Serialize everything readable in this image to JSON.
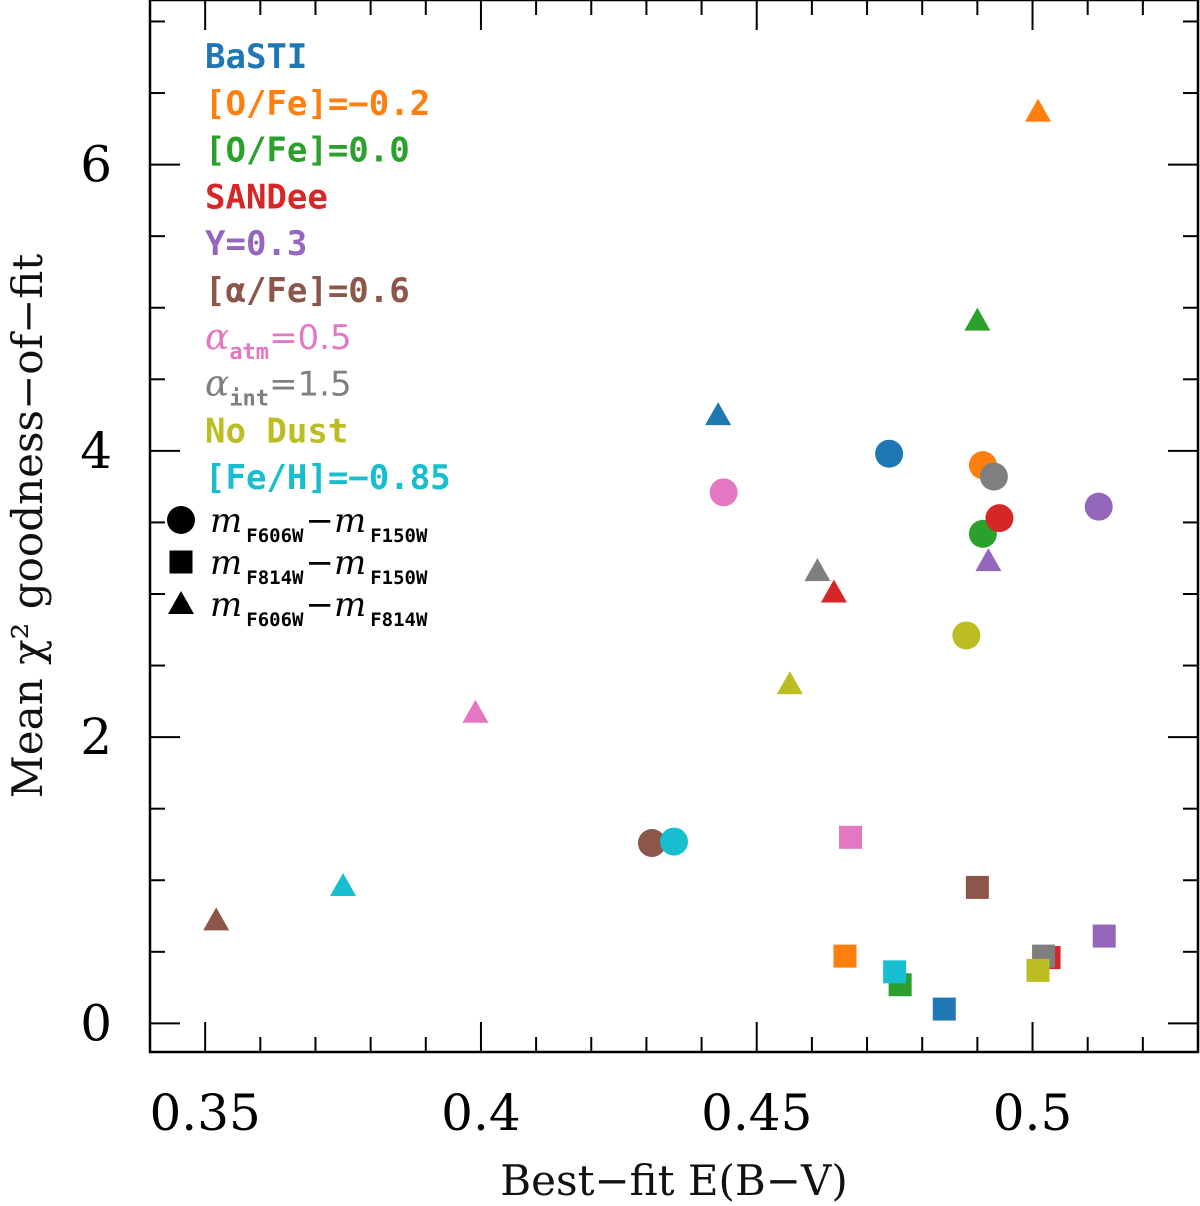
{
  "chart_data": {
    "type": "scatter",
    "xlabel": "Best−fit E(B−V)",
    "ylabel": "Mean χ² goodness−of−fit",
    "xlim": [
      0.34,
      0.53
    ],
    "ylim": [
      -0.2,
      7.15
    ],
    "x_ticks": [
      0.35,
      0.4,
      0.45,
      0.5
    ],
    "x_tick_labels": [
      "0.35",
      "0.4",
      "0.45",
      "0.5"
    ],
    "y_ticks": [
      0,
      2,
      4,
      6
    ],
    "y_tick_labels": [
      "0",
      "2",
      "4",
      "6"
    ],
    "x_minor_step": 0.01,
    "y_minor_step": 0.5,
    "legend_placement": "top-left",
    "models": [
      {
        "name": "BaSTI",
        "display": "BaSTI",
        "color": "#1f77b4"
      },
      {
        "name": "[O/Fe]=-0.2",
        "display": "[O/Fe]=−0.2",
        "color": "#ff7f0e"
      },
      {
        "name": "[O/Fe]=0.0",
        "display": "[O/Fe]=0.0",
        "color": "#2ca02c"
      },
      {
        "name": "SANDee",
        "display": "SANDee",
        "color": "#d62728"
      },
      {
        "name": "Y=0.3",
        "display": "Y=0.3",
        "color": "#9467bd"
      },
      {
        "name": "[alpha/Fe]=0.6",
        "display": "[α/Fe]=0.6",
        "color": "#8c564b"
      },
      {
        "name": "alpha_atm=0.5",
        "display": "α",
        "sub": "atm",
        "rest": "=0.5",
        "color": "#e377c2"
      },
      {
        "name": "alpha_int=1.5",
        "display": "α",
        "sub": "int",
        "rest": "=1.5",
        "color": "#7f7f7f"
      },
      {
        "name": "No Dust",
        "display": "No Dust",
        "color": "#bcbd22"
      },
      {
        "name": "[Fe/H]=-0.85",
        "display": "[Fe/H]=−0.85",
        "color": "#17becf"
      }
    ],
    "marker_legend": [
      {
        "marker": "circle",
        "c1": "m",
        "s1": "F606W",
        "sep": "−",
        "c2": "m",
        "s2": "F150W"
      },
      {
        "marker": "square",
        "c1": "m",
        "s1": "F814W",
        "sep": "−",
        "c2": "m",
        "s2": "F150W"
      },
      {
        "marker": "triangle",
        "c1": "m",
        "s1": "F606W",
        "sep": "−",
        "c2": "m",
        "s2": "F814W"
      }
    ],
    "series": [
      {
        "name": "BaSTI",
        "points": [
          {
            "marker": "circle",
            "x": 0.474,
            "y": 3.98
          },
          {
            "marker": "square",
            "x": 0.484,
            "y": 0.1
          },
          {
            "marker": "triangle",
            "x": 0.443,
            "y": 4.25
          }
        ]
      },
      {
        "name": "[O/Fe]=-0.2",
        "points": [
          {
            "marker": "circle",
            "x": 0.491,
            "y": 3.9
          },
          {
            "marker": "square",
            "x": 0.466,
            "y": 0.47
          },
          {
            "marker": "triangle",
            "x": 0.501,
            "y": 6.37
          }
        ]
      },
      {
        "name": "[O/Fe]=0.0",
        "points": [
          {
            "marker": "circle",
            "x": 0.491,
            "y": 3.42
          },
          {
            "marker": "square",
            "x": 0.476,
            "y": 0.27
          },
          {
            "marker": "triangle",
            "x": 0.49,
            "y": 4.91
          }
        ]
      },
      {
        "name": "SANDee",
        "points": [
          {
            "marker": "circle",
            "x": 0.494,
            "y": 3.53
          },
          {
            "marker": "square",
            "x": 0.503,
            "y": 0.46
          },
          {
            "marker": "triangle",
            "x": 0.464,
            "y": 3.01
          }
        ]
      },
      {
        "name": "Y=0.3",
        "points": [
          {
            "marker": "circle",
            "x": 0.512,
            "y": 3.61
          },
          {
            "marker": "square",
            "x": 0.513,
            "y": 0.61
          },
          {
            "marker": "triangle",
            "x": 0.492,
            "y": 3.23
          }
        ]
      },
      {
        "name": "[alpha/Fe]=0.6",
        "points": [
          {
            "marker": "circle",
            "x": 0.431,
            "y": 1.26
          },
          {
            "marker": "square",
            "x": 0.49,
            "y": 0.95
          },
          {
            "marker": "triangle",
            "x": 0.352,
            "y": 0.72
          }
        ]
      },
      {
        "name": "alpha_atm=0.5",
        "points": [
          {
            "marker": "circle",
            "x": 0.444,
            "y": 3.71
          },
          {
            "marker": "square",
            "x": 0.467,
            "y": 1.3
          },
          {
            "marker": "triangle",
            "x": 0.399,
            "y": 2.17
          }
        ]
      },
      {
        "name": "alpha_int=1.5",
        "points": [
          {
            "marker": "circle",
            "x": 0.493,
            "y": 3.82
          },
          {
            "marker": "square",
            "x": 0.502,
            "y": 0.47
          },
          {
            "marker": "triangle",
            "x": 0.461,
            "y": 3.16
          }
        ]
      },
      {
        "name": "No Dust",
        "points": [
          {
            "marker": "circle",
            "x": 0.488,
            "y": 2.71
          },
          {
            "marker": "square",
            "x": 0.501,
            "y": 0.37
          },
          {
            "marker": "triangle",
            "x": 0.456,
            "y": 2.37
          }
        ]
      },
      {
        "name": "[Fe/H]=-0.85",
        "points": [
          {
            "marker": "circle",
            "x": 0.435,
            "y": 1.27
          },
          {
            "marker": "square",
            "x": 0.475,
            "y": 0.36
          },
          {
            "marker": "triangle",
            "x": 0.375,
            "y": 0.96
          }
        ]
      }
    ]
  }
}
